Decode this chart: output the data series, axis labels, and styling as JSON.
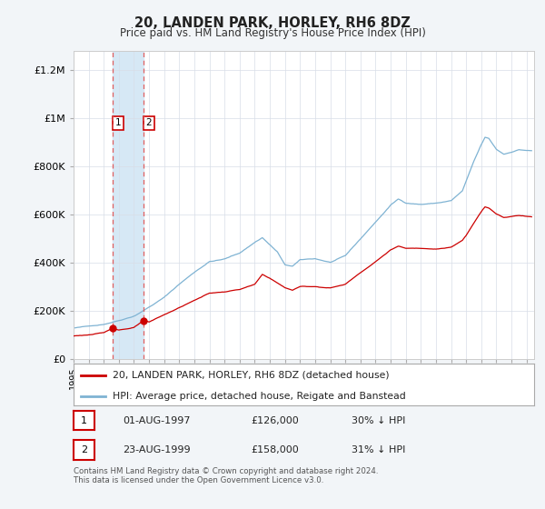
{
  "title": "20, LANDEN PARK, HORLEY, RH6 8DZ",
  "subtitle": "Price paid vs. HM Land Registry's House Price Index (HPI)",
  "ylabel_ticks": [
    "£0",
    "£200K",
    "£400K",
    "£600K",
    "£800K",
    "£1M",
    "£1.2M"
  ],
  "ytick_values": [
    0,
    200000,
    400000,
    600000,
    800000,
    1000000,
    1200000
  ],
  "ylim": [
    0,
    1280000
  ],
  "xlim_start": 1995.0,
  "xlim_end": 2025.5,
  "transactions": [
    {
      "label": "1",
      "date": 1997.583,
      "price": 126000,
      "hpi_pct": "30% ↓ HPI",
      "date_str": "01-AUG-1997"
    },
    {
      "label": "2",
      "date": 1999.639,
      "price": 158000,
      "hpi_pct": "31% ↓ HPI",
      "date_str": "23-AUG-1999"
    }
  ],
  "legend_line1": "20, LANDEN PARK, HORLEY, RH6 8DZ (detached house)",
  "legend_line2": "HPI: Average price, detached house, Reigate and Banstead",
  "footnote": "Contains HM Land Registry data © Crown copyright and database right 2024.\nThis data is licensed under the Open Government Licence v3.0.",
  "price_line_color": "#cc0000",
  "hpi_line_color": "#7fb3d3",
  "fill_color": "#d6e8f5",
  "dashed_vline_color": "#e06060",
  "marker_color": "#cc0000",
  "table_box_color": "#cc0000",
  "background_color": "#f2f5f8",
  "plot_bg_color": "#ffffff",
  "grid_color": "#d8dde8"
}
